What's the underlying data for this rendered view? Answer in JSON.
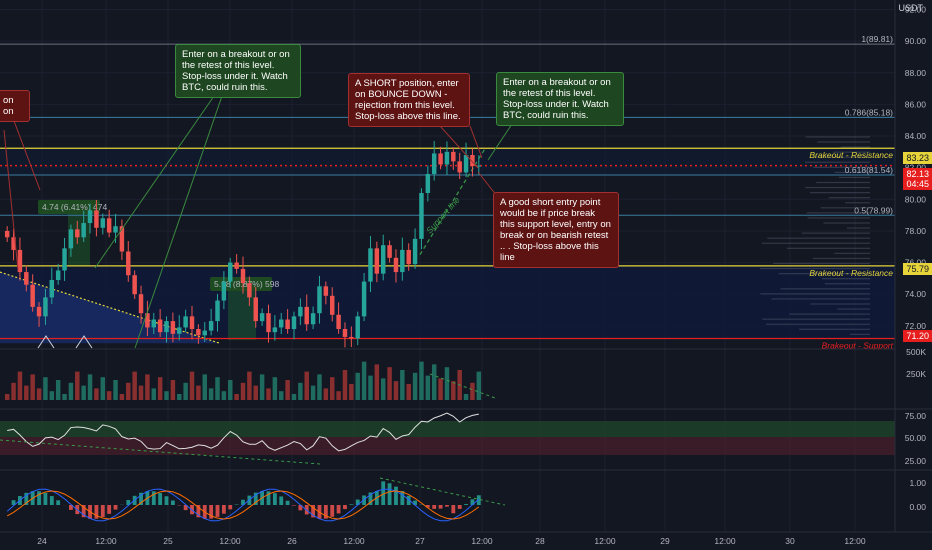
{
  "currency": "USDT",
  "price_ticks": [
    "92.00",
    "90.00",
    "88.00",
    "86.00",
    "84.00",
    "82.00",
    "80.00",
    "78.00",
    "76.00",
    "74.00",
    "72.00"
  ],
  "price_tick_values": [
    92,
    90,
    88,
    86,
    84,
    82,
    80,
    78,
    76,
    74,
    72
  ],
  "volume_ticks": [
    "500K",
    "250K"
  ],
  "rsi_ticks": [
    "75.00",
    "50.00",
    "25.00"
  ],
  "macd_ticks": [
    "1.00",
    "0.00"
  ],
  "time_ticks": [
    "24",
    "12:00",
    "25",
    "12:00",
    "26",
    "12:00",
    "27",
    "12:00",
    "28",
    "12:00",
    "29",
    "12:00",
    "30",
    "12:00"
  ],
  "fib_levels": [
    {
      "label": "1(89.81)",
      "price": 89.81
    },
    {
      "label": "0.786(85.18)",
      "price": 85.18
    },
    {
      "label": "0.618(81.54)",
      "price": 81.54
    },
    {
      "label": "0.5(78.99)",
      "price": 78.99
    }
  ],
  "levels": [
    {
      "label": "Brakeout - Resistance",
      "price": 83.23,
      "tag": "83.23",
      "color": "#e6d43a"
    },
    {
      "label": "Brakeout - Resistance",
      "price": 75.79,
      "tag": "75.79",
      "color": "#e6d43a"
    },
    {
      "label": "Brakeout - Support",
      "price": 71.2,
      "tag": "71.20",
      "color": "#e61e1e"
    }
  ],
  "current_price": {
    "value": "82.13",
    "countdown": "04:45",
    "price": 82.13
  },
  "measure_labels": [
    "4.74 (6.41%) 474",
    "5.98 (8.87%) 598"
  ],
  "support_line_label": "Support line",
  "annotations": [
    {
      "text": "Enter on a breakout or on the retest of this level. Stop-loss under it. Watch BTC, could ruin this.",
      "style": "green"
    },
    {
      "text": "A SHORT position, enter on BOUNCE DOWN - rejection from this level. Stop-loss above this line.",
      "style": "red"
    },
    {
      "text": "Enter on a breakout or on the retest of this level. Stop-loss under it. Watch BTC, could ruin this.",
      "style": "green"
    },
    {
      "text": "A good short entry point would be if price break this support level, entry on break or on bearish retest .. . Stop-loss above this line",
      "style": "red"
    },
    {
      "text": "on\non",
      "style": "red"
    }
  ],
  "chart_data": {
    "type": "candlestick",
    "y_axis": {
      "min": 70.6,
      "max": 92.6,
      "unit": "USDT"
    },
    "close_series": [
      77.6,
      76.8,
      75.4,
      74.6,
      73.2,
      72.6,
      73.8,
      74.9,
      75.5,
      76.9,
      78.1,
      77.6,
      78.5,
      79.3,
      78.2,
      78.8,
      77.9,
      78.3,
      76.7,
      75.2,
      74.0,
      72.8,
      71.9,
      72.4,
      71.6,
      72.3,
      71.5,
      71.9,
      72.6,
      71.8,
      71.4,
      71.7,
      72.3,
      73.6,
      74.8,
      76.0,
      75.6,
      74.7,
      73.8,
      72.3,
      72.8,
      71.6,
      71.9,
      72.4,
      71.8,
      72.6,
      73.2,
      72.1,
      72.8,
      74.5,
      73.9,
      72.7,
      71.8,
      71.3,
      71.2,
      72.6,
      74.8,
      76.9,
      75.3,
      77.1,
      76.3,
      75.4,
      76.8,
      75.9,
      77.5,
      80.4,
      81.6,
      82.9,
      82.2,
      83.0,
      82.4,
      81.7,
      82.8,
      82.1,
      82.13
    ],
    "rsi": {
      "levels": [
        75,
        50,
        25
      ]
    },
    "volume": {
      "max_label": "500K"
    }
  }
}
